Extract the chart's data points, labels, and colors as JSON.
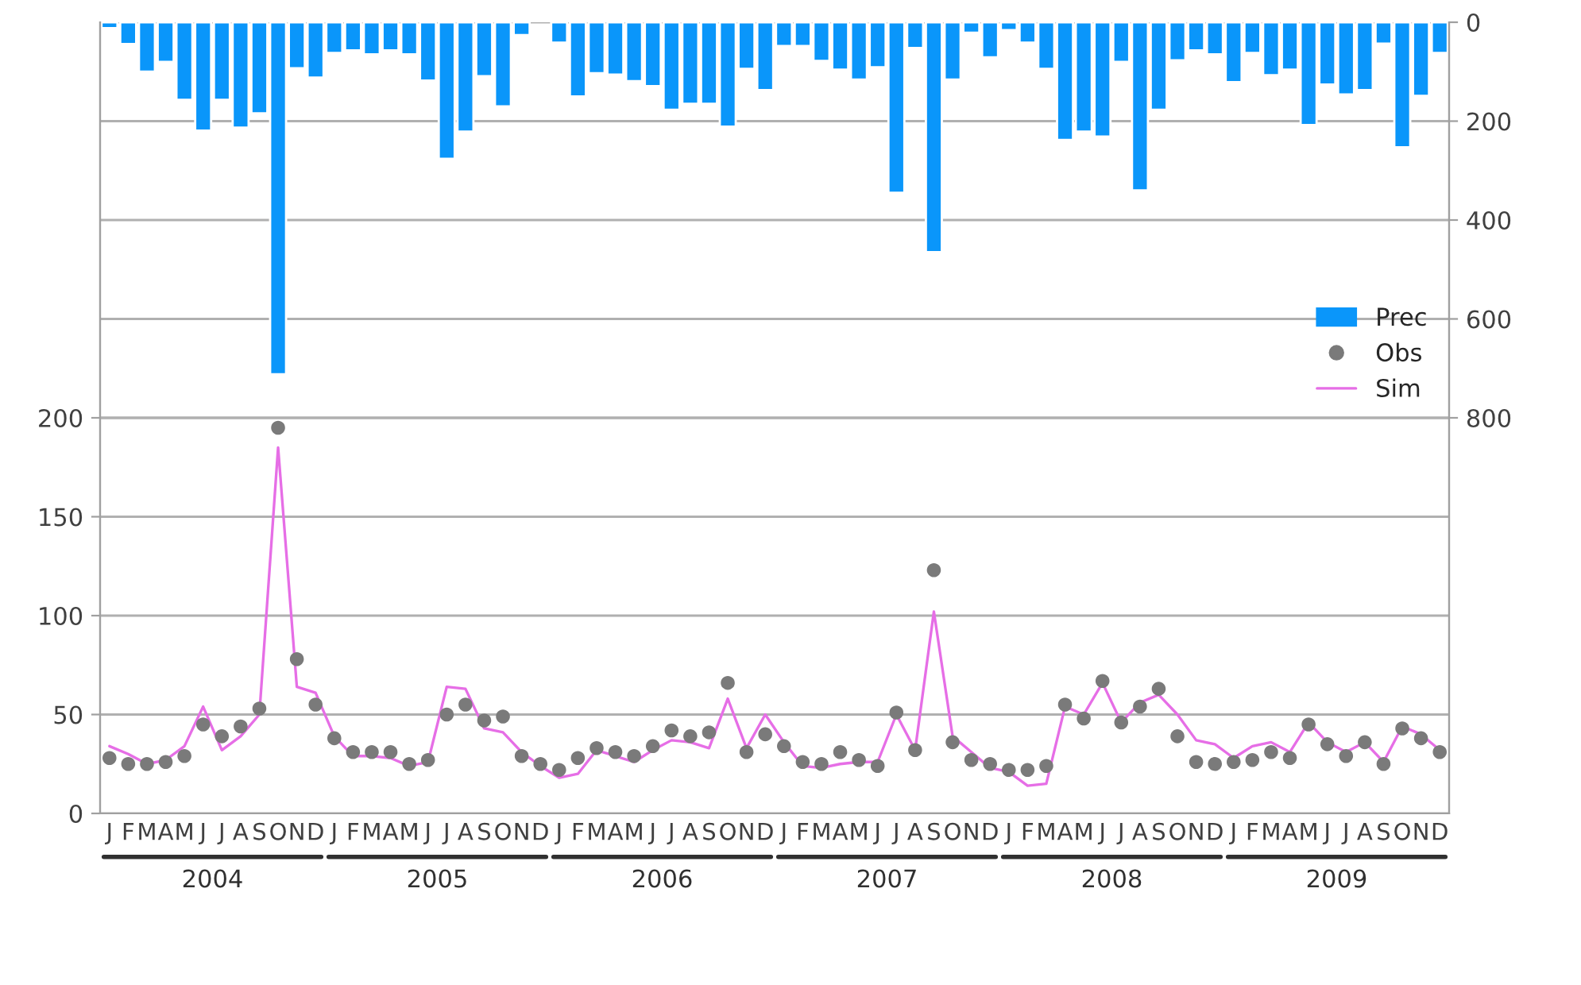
{
  "chart_data": {
    "type": "line",
    "categories": [
      "J",
      "F",
      "M",
      "A",
      "M",
      "J",
      "J",
      "A",
      "S",
      "O",
      "N",
      "D",
      "J",
      "F",
      "M",
      "A",
      "M",
      "J",
      "J",
      "A",
      "S",
      "O",
      "N",
      "D",
      "J",
      "F",
      "M",
      "A",
      "M",
      "J",
      "J",
      "A",
      "S",
      "O",
      "N",
      "D",
      "J",
      "F",
      "M",
      "A",
      "M",
      "J",
      "J",
      "A",
      "S",
      "O",
      "N",
      "D",
      "J",
      "F",
      "M",
      "A",
      "M",
      "J",
      "J",
      "A",
      "S",
      "O",
      "N",
      "D",
      "J",
      "F",
      "M",
      "A",
      "M",
      "J",
      "J",
      "A",
      "S",
      "O",
      "N",
      "D"
    ],
    "series": [
      {
        "name": "Prec",
        "type": "bar",
        "axis": "y2",
        "color": "#0a96fa",
        "values": [
          12,
          44,
          100,
          80,
          157,
          219,
          157,
          213,
          184,
          712,
          93,
          112,
          62,
          57,
          65,
          57,
          65,
          118,
          276,
          221,
          109,
          170,
          26,
          null,
          41,
          150,
          103,
          106,
          119,
          129,
          177,
          165,
          165,
          211,
          94,
          137,
          48,
          48,
          78,
          96,
          116,
          91,
          345,
          52,
          465,
          116,
          21,
          71,
          16,
          41,
          94,
          238,
          221,
          231,
          80,
          340,
          177,
          77,
          57,
          65,
          121,
          62,
          107,
          96,
          208,
          126,
          146,
          137,
          43,
          253,
          149,
          62
        ]
      },
      {
        "name": "Obs",
        "type": "scatter",
        "color": "#7a7a7a",
        "marker": "circle",
        "values": [
          28,
          25,
          25,
          26,
          29,
          45,
          39,
          44,
          53,
          195,
          78,
          55,
          38,
          31,
          31,
          31,
          25,
          27,
          50,
          55,
          47,
          49,
          29,
          25,
          22,
          28,
          33,
          31,
          29,
          34,
          42,
          39,
          41,
          66,
          31,
          40,
          34,
          26,
          25,
          31,
          27,
          24,
          51,
          32,
          123,
          36,
          27,
          25,
          22,
          22,
          24,
          55,
          48,
          67,
          46,
          54,
          63,
          39,
          26,
          25,
          26,
          27,
          31,
          28,
          45,
          35,
          29,
          36,
          25,
          43,
          38,
          31
        ]
      },
      {
        "name": "Sim",
        "color": "#e66ee6",
        "marker": "none",
        "line_style": "solid",
        "values": [
          34,
          30,
          25,
          27,
          34,
          54,
          32,
          39,
          50,
          185,
          64,
          61,
          39,
          29,
          29,
          28,
          24,
          26,
          64,
          63,
          43,
          41,
          31,
          24,
          18,
          20,
          32,
          29,
          26,
          32,
          37,
          36,
          33,
          58,
          33,
          50,
          36,
          24,
          23,
          25,
          26,
          26,
          50,
          32,
          102,
          39,
          31,
          23,
          21,
          14,
          15,
          54,
          50,
          66,
          46,
          56,
          60,
          50,
          37,
          35,
          28,
          34,
          36,
          31,
          46,
          36,
          31,
          36,
          26,
          44,
          40,
          32
        ]
      }
    ],
    "ylim": [
      0,
      400
    ],
    "yticks": [
      0,
      50,
      100,
      150,
      200
    ],
    "y2lim": [
      1600,
      0
    ],
    "y2ticks": [
      0,
      200,
      400,
      600,
      800
    ],
    "grid": true,
    "legend": "right",
    "annotations": [
      "2004",
      "2005",
      "2006",
      "2007",
      "2008",
      "2009"
    ]
  }
}
